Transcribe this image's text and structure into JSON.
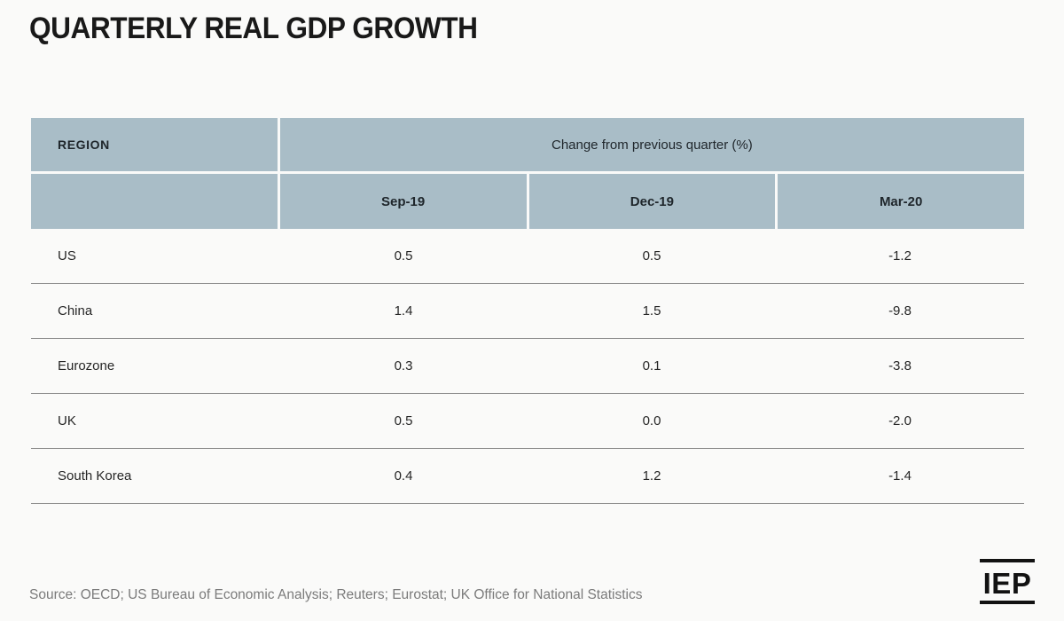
{
  "page": {
    "title": "QUARTERLY REAL GDP GROWTH",
    "source": "Source: OECD; US Bureau of Economic Analysis; Reuters; Eurostat; UK Office for National Statistics",
    "logo_text": "IEP",
    "background_color": "#fafaf9",
    "header_fill_color": "#a9bdc7",
    "row_divider_color": "#8a8a8a"
  },
  "table": {
    "header": {
      "region_label": "REGION",
      "group_label": "Change from previous quarter (%)",
      "quarters": [
        "Sep-19",
        "Dec-19",
        "Mar-20"
      ]
    },
    "rows": [
      {
        "region": "US",
        "values": [
          "0.5",
          "0.5",
          "-1.2"
        ]
      },
      {
        "region": "China",
        "values": [
          "1.4",
          "1.5",
          "-9.8"
        ]
      },
      {
        "region": "Eurozone",
        "values": [
          "0.3",
          "0.1",
          "-3.8"
        ]
      },
      {
        "region": "UK",
        "values": [
          "0.5",
          "0.0",
          "-2.0"
        ]
      },
      {
        "region": "South Korea",
        "values": [
          "0.4",
          "1.2",
          "-1.4"
        ]
      }
    ]
  },
  "chart_data": {
    "type": "table",
    "title": "QUARTERLY REAL GDP GROWTH",
    "column_group_label": "Change from previous quarter (%)",
    "columns": [
      "REGION",
      "Sep-19",
      "Dec-19",
      "Mar-20"
    ],
    "rows": [
      [
        "US",
        0.5,
        0.5,
        -1.2
      ],
      [
        "China",
        1.4,
        1.5,
        -9.8
      ],
      [
        "Eurozone",
        0.3,
        0.1,
        -3.8
      ],
      [
        "UK",
        0.5,
        0.0,
        -2.0
      ],
      [
        "South Korea",
        0.4,
        1.2,
        -1.4
      ]
    ],
    "units": "percent change from previous quarter",
    "source": "Source: OECD; US Bureau of Economic Analysis; Reuters; Eurostat; UK Office for National Statistics"
  }
}
